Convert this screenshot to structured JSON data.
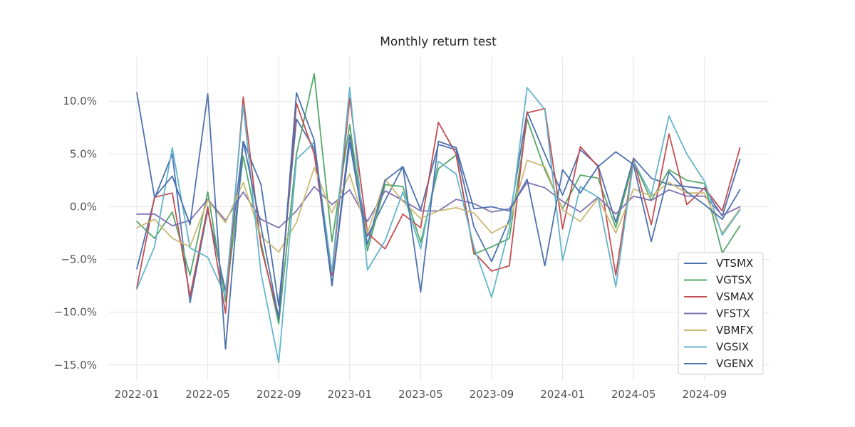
{
  "chart_data": {
    "type": "line",
    "title": "Monthly return test",
    "xlabel": "",
    "ylabel": "",
    "x": [
      "2022-01",
      "2022-02",
      "2022-03",
      "2022-04",
      "2022-05",
      "2022-06",
      "2022-07",
      "2022-08",
      "2022-09",
      "2022-10",
      "2022-11",
      "2022-12",
      "2023-01",
      "2023-02",
      "2023-03",
      "2023-04",
      "2023-05",
      "2023-06",
      "2023-07",
      "2023-08",
      "2023-09",
      "2023-10",
      "2023-11",
      "2023-12",
      "2024-01",
      "2024-02",
      "2024-03",
      "2024-04",
      "2024-05",
      "2024-06",
      "2024-07",
      "2024-08",
      "2024-09",
      "2024-10",
      "2024-11"
    ],
    "x_ticks": [
      "2022-01",
      "2022-05",
      "2022-09",
      "2023-01",
      "2023-05",
      "2023-09",
      "2024-01",
      "2024-05",
      "2024-09"
    ],
    "y_ticks": [
      -15,
      -10,
      -5,
      0,
      5,
      10
    ],
    "y_tick_labels": [
      "−15.0%",
      "−10.0%",
      "−5.0%",
      "0.0%",
      "5.0%",
      "10.0%"
    ],
    "ylim": [
      -16.5,
      14.2
    ],
    "y_unit": "%",
    "grid": true,
    "legend_position": "lower-right",
    "series": [
      {
        "name": "VTSMX",
        "color": "#4c72b0",
        "values": [
          -5.9,
          0.8,
          5.0,
          -9.1,
          -0.3,
          -8.0,
          6.2,
          2.1,
          -9.4,
          8.3,
          5.5,
          -7.4,
          6.8,
          -2.8,
          0.6,
          3.8,
          -0.3,
          5.9,
          5.4,
          -1.9,
          -5.2,
          -1.2,
          9.0,
          5.0,
          1.1,
          5.4,
          3.9,
          -1.5,
          4.6,
          2.7,
          2.1,
          1.9,
          1.7,
          -0.9,
          4.5
        ]
      },
      {
        "name": "VGTSX",
        "color": "#55a868",
        "values": [
          -1.4,
          -3.0,
          -0.5,
          -6.5,
          1.4,
          -9.0,
          4.8,
          -3.4,
          -11.1,
          5.0,
          12.6,
          -3.3,
          7.8,
          -4.2,
          2.1,
          1.9,
          -3.4,
          3.6,
          4.9,
          -4.5,
          -3.8,
          -3.0,
          8.3,
          3.5,
          -0.2,
          3.0,
          2.7,
          -2.0,
          4.3,
          0.6,
          3.5,
          2.5,
          2.2,
          -4.4,
          -1.8
        ]
      },
      {
        "name": "VSMAX",
        "color": "#c44e52",
        "values": [
          -7.7,
          0.9,
          1.3,
          -8.5,
          0.0,
          -10.1,
          10.4,
          -3.8,
          -10.5,
          9.8,
          5.0,
          -6.5,
          10.3,
          -2.5,
          -4.0,
          -0.7,
          -2.0,
          8.0,
          5.0,
          -4.3,
          -6.1,
          -5.6,
          8.9,
          9.3,
          -2.1,
          5.7,
          3.8,
          -6.5,
          4.5,
          -1.7,
          6.9,
          0.2,
          1.8,
          -0.4,
          5.6
        ]
      },
      {
        "name": "VFSTX",
        "color": "#8172b2",
        "values": [
          -0.7,
          -0.7,
          -1.8,
          -1.3,
          0.7,
          -1.3,
          1.4,
          -1.2,
          -2.0,
          -0.4,
          1.9,
          0.2,
          1.6,
          -1.4,
          1.5,
          0.6,
          -0.4,
          -0.4,
          0.7,
          0.3,
          -0.5,
          -0.2,
          2.3,
          1.8,
          0.5,
          -0.5,
          0.9,
          -0.7,
          1.0,
          0.6,
          1.6,
          1.0,
          1.0,
          -0.8,
          0.0
        ]
      },
      {
        "name": "VBMFX",
        "color": "#ccb974",
        "values": [
          -2.0,
          -1.2,
          -3.0,
          -3.8,
          0.6,
          -1.5,
          2.3,
          -2.8,
          -4.3,
          -1.5,
          3.7,
          -0.6,
          3.1,
          -2.5,
          2.6,
          0.5,
          -1.1,
          -0.4,
          -0.1,
          -0.6,
          -2.5,
          -1.6,
          4.4,
          3.8,
          -0.3,
          -1.4,
          0.8,
          -2.5,
          1.7,
          1.0,
          2.3,
          1.3,
          1.3,
          -2.5,
          -0.2
        ]
      },
      {
        "name": "VGSIX",
        "color": "#64b5cd",
        "values": [
          -7.8,
          -3.8,
          5.6,
          -3.9,
          -4.8,
          -8.5,
          9.6,
          -6.3,
          -14.8,
          4.5,
          6.1,
          -6.2,
          11.3,
          -6.0,
          -3.2,
          1.4,
          -4.0,
          4.3,
          3.1,
          -3.8,
          -8.6,
          -2.0,
          11.3,
          9.2,
          -5.1,
          1.9,
          0.9,
          -7.6,
          4.3,
          1.1,
          8.6,
          5.0,
          2.4,
          -2.7,
          -0.3
        ]
      },
      {
        "name": "VGENX",
        "color": "#4c72b0",
        "values": [
          10.8,
          0.9,
          2.9,
          -1.7,
          10.7,
          -13.5,
          6.2,
          -1.9,
          -10.6,
          10.8,
          6.3,
          -7.5,
          6.1,
          -3.6,
          2.5,
          3.8,
          -8.1,
          6.2,
          5.6,
          -0.2,
          0.0,
          -0.4,
          2.6,
          -5.6,
          3.5,
          1.3,
          3.8,
          5.2,
          4.0,
          -3.3,
          3.3,
          1.4,
          0.2,
          -1.2,
          1.6
        ]
      }
    ]
  }
}
